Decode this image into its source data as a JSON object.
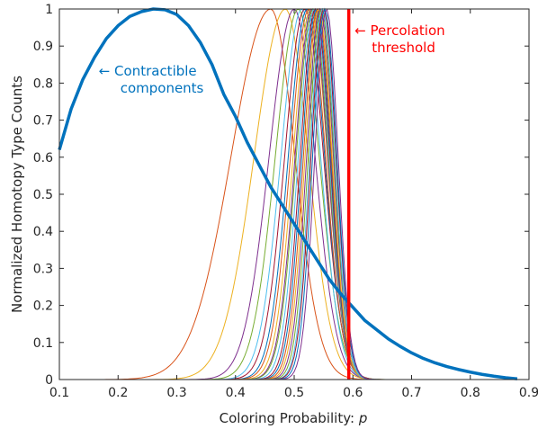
{
  "chart_data": {
    "type": "line",
    "xlabel": "Coloring Probability: ",
    "xlabel_var": "p",
    "ylabel": "Normalized Homotopy Type Counts",
    "xlim": [
      0.1,
      0.9
    ],
    "ylim": [
      0,
      1
    ],
    "xticks": [
      "0.1",
      "0.2",
      "0.3",
      "0.4",
      "0.5",
      "0.6",
      "0.7",
      "0.8",
      "0.9"
    ],
    "yticks": [
      "0",
      "0.1",
      "0.2",
      "0.3",
      "0.4",
      "0.5",
      "0.6",
      "0.7",
      "0.8",
      "0.9",
      "1"
    ],
    "grid": false,
    "threshold": {
      "x": 0.593,
      "color": "#ff0000"
    },
    "annotations": [
      {
        "lines": [
          "← Percolation",
          "threshold"
        ],
        "x": 0.603,
        "y": 0.93,
        "color": "#ff0000"
      },
      {
        "lines": [
          "← Contractible",
          "components"
        ],
        "x": 0.167,
        "y": 0.82,
        "color": "#0072bd"
      }
    ],
    "contractible": {
      "color": "#0072bd",
      "points": [
        [
          0.1,
          0.62
        ],
        [
          0.12,
          0.73
        ],
        [
          0.14,
          0.81
        ],
        [
          0.16,
          0.87
        ],
        [
          0.18,
          0.92
        ],
        [
          0.2,
          0.955
        ],
        [
          0.22,
          0.98
        ],
        [
          0.24,
          0.993
        ],
        [
          0.26,
          1.0
        ],
        [
          0.28,
          0.998
        ],
        [
          0.3,
          0.985
        ],
        [
          0.32,
          0.955
        ],
        [
          0.34,
          0.91
        ],
        [
          0.36,
          0.85
        ],
        [
          0.38,
          0.77
        ],
        [
          0.4,
          0.71
        ],
        [
          0.42,
          0.64
        ],
        [
          0.44,
          0.58
        ],
        [
          0.46,
          0.52
        ],
        [
          0.48,
          0.47
        ],
        [
          0.5,
          0.42
        ],
        [
          0.52,
          0.37
        ],
        [
          0.54,
          0.32
        ],
        [
          0.56,
          0.27
        ],
        [
          0.58,
          0.23
        ],
        [
          0.6,
          0.195
        ],
        [
          0.62,
          0.16
        ],
        [
          0.64,
          0.135
        ],
        [
          0.66,
          0.11
        ],
        [
          0.68,
          0.09
        ],
        [
          0.7,
          0.072
        ],
        [
          0.72,
          0.057
        ],
        [
          0.74,
          0.045
        ],
        [
          0.76,
          0.035
        ],
        [
          0.78,
          0.027
        ],
        [
          0.8,
          0.02
        ],
        [
          0.82,
          0.014
        ],
        [
          0.84,
          0.009
        ],
        [
          0.86,
          0.005
        ],
        [
          0.88,
          0.002
        ]
      ]
    },
    "series": [
      {
        "color": "#d95319",
        "center": 0.46,
        "left_width": 0.095,
        "right_width": 0.058
      },
      {
        "color": "#edb120",
        "center": 0.485,
        "left_width": 0.075,
        "right_width": 0.055
      },
      {
        "color": "#7e2f8e",
        "center": 0.5,
        "left_width": 0.06,
        "right_width": 0.05
      },
      {
        "color": "#77ac30",
        "center": 0.507,
        "left_width": 0.055,
        "right_width": 0.05
      },
      {
        "color": "#4dbeee",
        "center": 0.513,
        "left_width": 0.05,
        "right_width": 0.045
      },
      {
        "color": "#a2142f",
        "center": 0.518,
        "left_width": 0.048,
        "right_width": 0.045
      },
      {
        "color": "#0072bd",
        "center": 0.522,
        "left_width": 0.045,
        "right_width": 0.042
      },
      {
        "color": "#d95319",
        "center": 0.525,
        "left_width": 0.044,
        "right_width": 0.04
      },
      {
        "color": "#edb120",
        "center": 0.528,
        "left_width": 0.042,
        "right_width": 0.04
      },
      {
        "color": "#7e2f8e",
        "center": 0.53,
        "left_width": 0.04,
        "right_width": 0.038
      },
      {
        "color": "#77ac30",
        "center": 0.532,
        "left_width": 0.04,
        "right_width": 0.037
      },
      {
        "color": "#4dbeee",
        "center": 0.534,
        "left_width": 0.038,
        "right_width": 0.036
      },
      {
        "color": "#a2142f",
        "center": 0.536,
        "left_width": 0.036,
        "right_width": 0.035
      },
      {
        "color": "#0072bd",
        "center": 0.538,
        "left_width": 0.035,
        "right_width": 0.034
      },
      {
        "color": "#d95319",
        "center": 0.54,
        "left_width": 0.034,
        "right_width": 0.033
      },
      {
        "color": "#edb120",
        "center": 0.542,
        "left_width": 0.033,
        "right_width": 0.032
      },
      {
        "color": "#7e2f8e",
        "center": 0.544,
        "left_width": 0.032,
        "right_width": 0.032
      },
      {
        "color": "#77ac30",
        "center": 0.546,
        "left_width": 0.031,
        "right_width": 0.031
      },
      {
        "color": "#4dbeee",
        "center": 0.548,
        "left_width": 0.03,
        "right_width": 0.03
      },
      {
        "color": "#a2142f",
        "center": 0.55,
        "left_width": 0.03,
        "right_width": 0.03
      },
      {
        "color": "#0072bd",
        "center": 0.552,
        "left_width": 0.029,
        "right_width": 0.029
      },
      {
        "color": "#7e2f8e",
        "center": 0.555,
        "left_width": 0.028,
        "right_width": 0.028
      }
    ]
  }
}
